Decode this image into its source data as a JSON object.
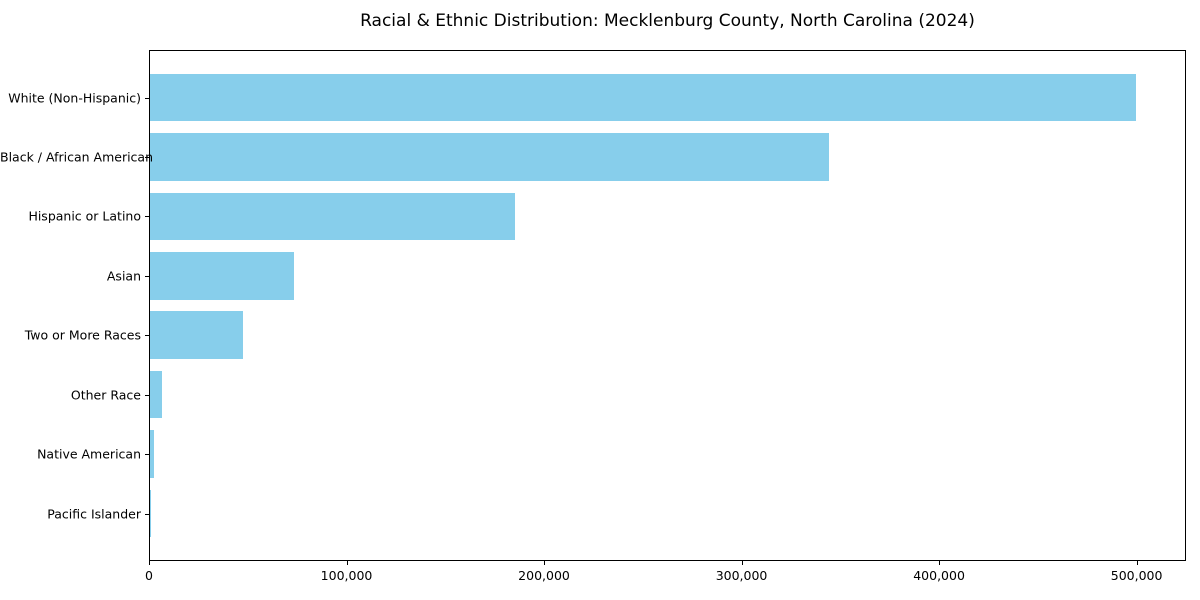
{
  "chart_data": {
    "type": "bar",
    "orientation": "horizontal",
    "title": "Racial & Ethnic Distribution: Mecklenburg County, North Carolina (2024)",
    "categories": [
      "White (Non-Hispanic)",
      "Black / African American",
      "Hispanic or Latino",
      "Asian",
      "Two or More Races",
      "Other Race",
      "Native American",
      "Pacific Islander"
    ],
    "values": [
      499000,
      344000,
      185000,
      73000,
      47000,
      6000,
      2000,
      500
    ],
    "xlabel": "",
    "ylabel": "",
    "xlim": [
      0,
      524000
    ],
    "xtick_values": [
      0,
      100000,
      200000,
      300000,
      400000,
      500000
    ],
    "xtick_labels": [
      "0",
      "100,000",
      "200,000",
      "300,000",
      "400,000",
      "500,000"
    ],
    "bar_color": "#87CEEB",
    "frame_color": "#000000",
    "background_color": "#ffffff",
    "grid": false,
    "legend": "none"
  }
}
